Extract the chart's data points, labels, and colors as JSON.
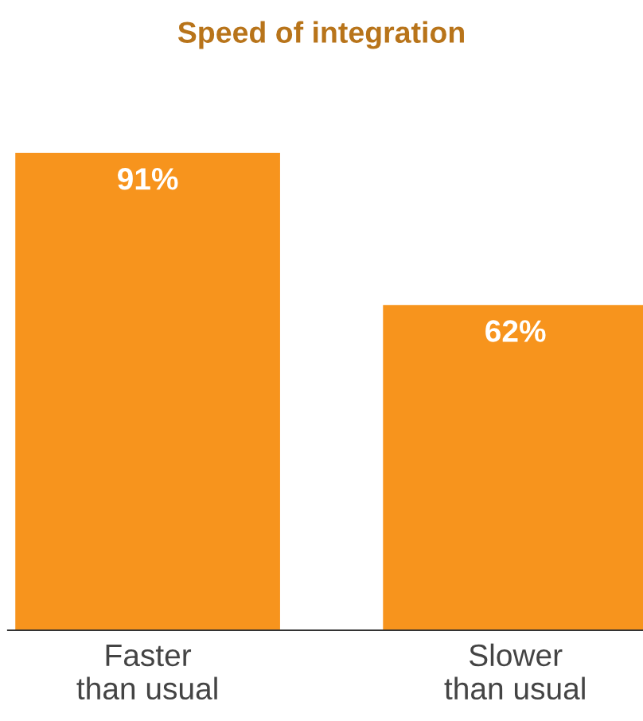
{
  "chart_data": {
    "type": "bar",
    "title": "Speed of integration",
    "categories": [
      "Faster\nthan usual",
      "Slower\nthan usual"
    ],
    "values": [
      91,
      62
    ],
    "value_labels": [
      "91%",
      "62%"
    ],
    "color": "#f7941d",
    "grid": false,
    "legend": false
  }
}
